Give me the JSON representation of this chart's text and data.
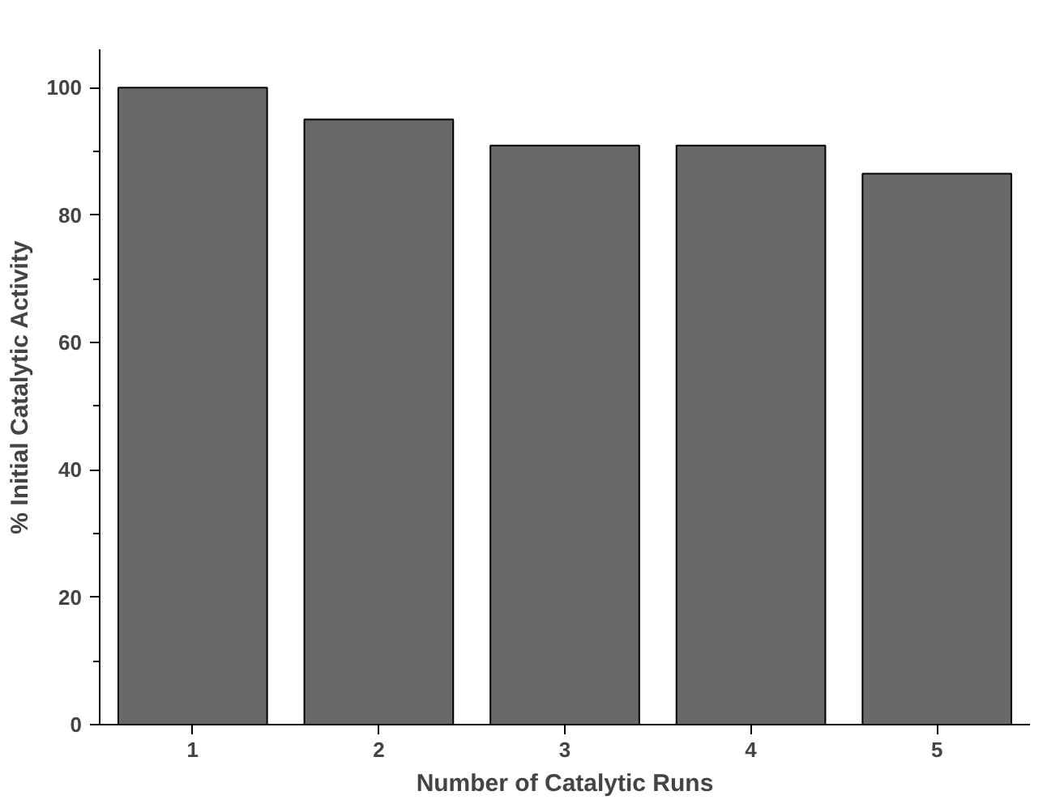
{
  "chart_data": {
    "type": "bar",
    "xlabel": "Number of Catalytic Runs",
    "ylabel": "% Initial Catalytic Activity",
    "categories": [
      "1",
      "2",
      "3",
      "4",
      "5"
    ],
    "values": [
      100,
      95,
      90.9,
      90.9,
      86.5
    ],
    "color": "#696969",
    "ylim": [
      0,
      106
    ],
    "yticks": [
      0,
      20,
      40,
      60,
      80,
      100
    ],
    "grid": false
  }
}
